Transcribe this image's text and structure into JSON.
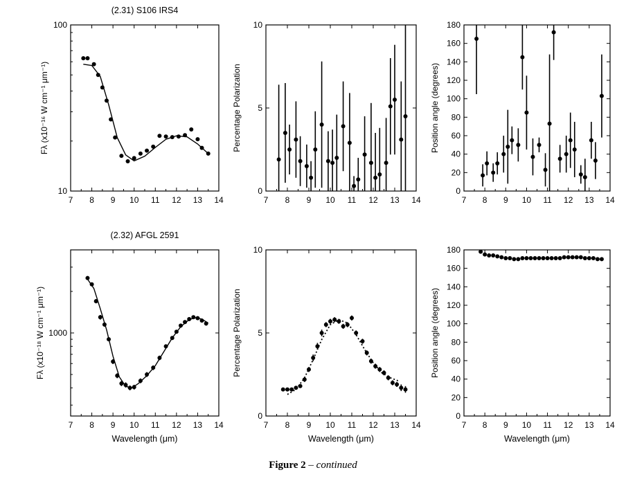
{
  "figure": {
    "caption_bold": "Figure 2",
    "caption_sep": " – ",
    "caption_italic": "continued"
  },
  "chart_data": [
    {
      "id": "s106-flux",
      "type": "scatter",
      "title": "(2.31) S106 IRS4",
      "xlabel": "",
      "ylabel": "Fλ (x10⁻¹⁶ W cm⁻¹ μm⁻¹)",
      "xlim": [
        7,
        14
      ],
      "ylim": [
        10,
        100
      ],
      "ylog": true,
      "xticks": [
        "7",
        "8",
        "9",
        "10",
        "11",
        "12",
        "13",
        "14"
      ],
      "yticks": [
        {
          "value": 10,
          "label": "10"
        },
        {
          "value": 100,
          "label": "100"
        }
      ],
      "points": {
        "x": [
          7.6,
          7.8,
          8.1,
          8.3,
          8.5,
          8.7,
          8.9,
          9.1,
          9.4,
          9.7,
          10.0,
          10.3,
          10.6,
          10.9,
          11.2,
          11.5,
          11.8,
          12.1,
          12.4,
          12.7,
          13.0,
          13.2,
          13.5
        ],
        "y": [
          63,
          63,
          58,
          50,
          42,
          35,
          27,
          21,
          16.3,
          15.1,
          15.8,
          16.8,
          17.5,
          18.5,
          21.5,
          21.3,
          21.1,
          21.3,
          21.7,
          23.5,
          20.5,
          18.2,
          16.8
        ]
      },
      "fit": {
        "x": [
          7.6,
          8.0,
          8.4,
          8.8,
          9.2,
          9.6,
          10.0,
          10.5,
          11.0,
          11.5,
          12.0,
          12.5,
          13.0,
          13.5
        ],
        "y": [
          58,
          57,
          49,
          33,
          21,
          16.5,
          15.2,
          16.2,
          18.3,
          20.5,
          21.5,
          21.2,
          19.2,
          16.8
        ]
      }
    },
    {
      "id": "s106-pol",
      "type": "scatter",
      "title": "",
      "xlabel": "",
      "ylabel": "Percentage Polarization",
      "xlim": [
        7,
        14
      ],
      "ylim": [
        0,
        10
      ],
      "xticks": [
        "7",
        "8",
        "9",
        "10",
        "11",
        "12",
        "13",
        "14"
      ],
      "yticks": [
        {
          "value": 0,
          "label": "0"
        },
        {
          "value": 5,
          "label": "5"
        },
        {
          "value": 10,
          "label": "10"
        }
      ],
      "points": {
        "x": [
          7.6,
          7.9,
          8.1,
          8.4,
          8.6,
          8.9,
          9.1,
          9.3,
          9.6,
          9.9,
          10.1,
          10.3,
          10.6,
          10.9,
          11.1,
          11.3,
          11.6,
          11.9,
          12.1,
          12.3,
          12.6,
          12.8,
          13.0,
          13.3,
          13.5
        ],
        "y": [
          1.9,
          3.5,
          2.5,
          3.1,
          1.8,
          1.5,
          0.8,
          2.5,
          4.0,
          1.8,
          1.7,
          2.0,
          3.9,
          2.9,
          0.3,
          0.7,
          2.2,
          1.7,
          0.8,
          1.0,
          1.7,
          5.1,
          5.5,
          3.1,
          4.5
        ],
        "err": [
          4.5,
          3.0,
          1.5,
          2.3,
          1.5,
          1.3,
          1.0,
          2.3,
          3.8,
          1.8,
          2.0,
          2.6,
          2.7,
          3.0,
          0.6,
          1.3,
          2.3,
          3.6,
          2.7,
          2.8,
          2.7,
          2.9,
          3.3,
          3.5,
          5.5
        ]
      }
    },
    {
      "id": "s106-pa",
      "type": "scatter",
      "title": "",
      "xlabel": "",
      "ylabel": "Position angle (degrees)",
      "xlim": [
        7,
        14
      ],
      "ylim": [
        0,
        180
      ],
      "xticks": [
        "7",
        "8",
        "9",
        "10",
        "11",
        "12",
        "13",
        "14"
      ],
      "yticks": [
        {
          "value": 0,
          "label": "0"
        },
        {
          "value": 20,
          "label": "20"
        },
        {
          "value": 40,
          "label": "40"
        },
        {
          "value": 60,
          "label": "60"
        },
        {
          "value": 80,
          "label": "80"
        },
        {
          "value": 100,
          "label": "100"
        },
        {
          "value": 120,
          "label": "120"
        },
        {
          "value": 140,
          "label": "140"
        },
        {
          "value": 160,
          "label": "160"
        },
        {
          "value": 180,
          "label": "180"
        }
      ],
      "points": {
        "x": [
          7.6,
          7.9,
          8.1,
          8.4,
          8.6,
          8.9,
          9.1,
          9.3,
          9.6,
          9.8,
          10.0,
          10.3,
          10.6,
          10.9,
          11.1,
          11.3,
          11.6,
          11.9,
          12.1,
          12.3,
          12.6,
          12.8,
          13.1,
          13.3,
          13.6
        ],
        "y": [
          165,
          17,
          30,
          20,
          30,
          40,
          48,
          55,
          50,
          145,
          85,
          37,
          50,
          23,
          73,
          172,
          35,
          40,
          55,
          45,
          18,
          15,
          55,
          33,
          103
        ],
        "err": [
          60,
          12,
          13,
          10,
          12,
          20,
          40,
          15,
          18,
          35,
          40,
          20,
          8,
          18,
          75,
          30,
          15,
          20,
          30,
          30,
          10,
          20,
          20,
          20,
          45
        ]
      }
    },
    {
      "id": "afgl-flux",
      "type": "scatter",
      "title": "(2.32) AFGL 2591",
      "xlabel": "Wavelength (μm)",
      "ylabel": "Fλ (x10⁻¹⁸ W cm⁻¹ μm⁻¹)",
      "xlim": [
        7,
        14
      ],
      "ylim": [
        250,
        4000
      ],
      "ylog": true,
      "xticks": [
        "7",
        "8",
        "9",
        "10",
        "11",
        "12",
        "13",
        "14"
      ],
      "yticks": [
        {
          "value": 1000,
          "label": "1000"
        }
      ],
      "points": {
        "x": [
          7.8,
          8.0,
          8.2,
          8.4,
          8.6,
          8.8,
          9.0,
          9.2,
          9.4,
          9.6,
          9.8,
          10.0,
          10.3,
          10.6,
          10.9,
          11.2,
          11.5,
          11.8,
          12.0,
          12.2,
          12.4,
          12.6,
          12.8,
          13.0,
          13.2,
          13.4
        ],
        "y": [
          2500,
          2250,
          1700,
          1300,
          1150,
          900,
          620,
          490,
          430,
          420,
          400,
          405,
          450,
          500,
          560,
          660,
          800,
          920,
          1020,
          1130,
          1200,
          1260,
          1300,
          1280,
          1230,
          1170
        ],
        "err": [
          80,
          70,
          60,
          50,
          40,
          30,
          25,
          20,
          18,
          18,
          16,
          16,
          18,
          20,
          22,
          25,
          28,
          30,
          32,
          35,
          38,
          40,
          40,
          40,
          40,
          40
        ]
      },
      "fit": {
        "x": [
          7.8,
          8.1,
          8.4,
          8.7,
          9.0,
          9.3,
          9.6,
          9.9,
          10.2,
          10.6,
          11.0,
          11.4,
          11.8,
          12.2,
          12.6,
          12.9,
          13.2,
          13.5
        ],
        "y": [
          2450,
          2100,
          1500,
          1050,
          680,
          480,
          410,
          400,
          430,
          490,
          580,
          730,
          920,
          1110,
          1250,
          1290,
          1260,
          1180
        ]
      }
    },
    {
      "id": "afgl-pol",
      "type": "scatter",
      "title": "",
      "xlabel": "Wavelength (μm)",
      "ylabel": "Percentage Polarization",
      "xlim": [
        7,
        14
      ],
      "ylim": [
        0,
        10
      ],
      "xticks": [
        "7",
        "8",
        "9",
        "10",
        "11",
        "12",
        "13",
        "14"
      ],
      "yticks": [
        {
          "value": 0,
          "label": "0"
        },
        {
          "value": 5,
          "label": "5"
        },
        {
          "value": 10,
          "label": "10"
        }
      ],
      "points": {
        "x": [
          7.8,
          8.0,
          8.2,
          8.4,
          8.6,
          8.8,
          9.0,
          9.2,
          9.4,
          9.6,
          9.8,
          10.0,
          10.2,
          10.4,
          10.6,
          10.8,
          11.0,
          11.2,
          11.5,
          11.7,
          11.9,
          12.1,
          12.3,
          12.5,
          12.7,
          12.9,
          13.1,
          13.3,
          13.5
        ],
        "y": [
          1.6,
          1.6,
          1.6,
          1.7,
          1.8,
          2.2,
          2.8,
          3.5,
          4.2,
          5.0,
          5.5,
          5.7,
          5.8,
          5.7,
          5.4,
          5.5,
          5.9,
          5.0,
          4.5,
          3.8,
          3.3,
          3.0,
          2.8,
          2.6,
          2.3,
          2.0,
          1.9,
          1.7,
          1.6
        ],
        "err": [
          0.1,
          0.1,
          0.1,
          0.1,
          0.1,
          0.15,
          0.15,
          0.2,
          0.2,
          0.2,
          0.15,
          0.15,
          0.15,
          0.15,
          0.15,
          0.15,
          0.15,
          0.15,
          0.15,
          0.15,
          0.15,
          0.15,
          0.15,
          0.15,
          0.15,
          0.15,
          0.15,
          0.2,
          0.2
        ]
      },
      "fit": {
        "x": [
          8.0,
          8.4,
          8.8,
          9.2,
          9.6,
          10.0,
          10.4,
          10.8,
          11.2,
          11.6,
          12.0,
          12.4,
          12.8,
          13.2
        ],
        "y": [
          1.3,
          1.6,
          2.3,
          3.4,
          4.6,
          5.5,
          5.8,
          5.6,
          4.9,
          4.0,
          3.2,
          2.6,
          2.3,
          2.1
        ]
      }
    },
    {
      "id": "afgl-pa",
      "type": "scatter",
      "title": "",
      "xlabel": "Wavelength (μm)",
      "ylabel": "Position angle (degrees)",
      "xlim": [
        7,
        14
      ],
      "ylim": [
        0,
        180
      ],
      "xticks": [
        "7",
        "8",
        "9",
        "10",
        "11",
        "12",
        "13",
        "14"
      ],
      "yticks": [
        {
          "value": 0,
          "label": "0"
        },
        {
          "value": 20,
          "label": "20"
        },
        {
          "value": 40,
          "label": "40"
        },
        {
          "value": 60,
          "label": "60"
        },
        {
          "value": 80,
          "label": "80"
        },
        {
          "value": 100,
          "label": "100"
        },
        {
          "value": 120,
          "label": "120"
        },
        {
          "value": 140,
          "label": "140"
        },
        {
          "value": 160,
          "label": "160"
        },
        {
          "value": 180,
          "label": "180"
        }
      ],
      "points": {
        "x": [
          7.8,
          8.0,
          8.2,
          8.4,
          8.6,
          8.8,
          9.0,
          9.2,
          9.4,
          9.6,
          9.8,
          10.0,
          10.2,
          10.4,
          10.6,
          10.8,
          11.0,
          11.2,
          11.4,
          11.6,
          11.8,
          12.0,
          12.2,
          12.4,
          12.6,
          12.8,
          13.0,
          13.2,
          13.4,
          13.6
        ],
        "y": [
          178,
          175,
          174,
          174,
          173,
          172,
          171,
          171,
          170,
          170,
          171,
          171,
          171,
          171,
          171,
          171,
          171,
          171,
          171,
          171,
          172,
          172,
          172,
          172,
          172,
          171,
          171,
          171,
          170,
          170
        ],
        "err": [
          1,
          2,
          2,
          2,
          2,
          2,
          2,
          2,
          2,
          2,
          2,
          2,
          1,
          1,
          1,
          1,
          1,
          1,
          1,
          1,
          1,
          1,
          1,
          1,
          1,
          1,
          1,
          1,
          2,
          2
        ]
      }
    }
  ]
}
